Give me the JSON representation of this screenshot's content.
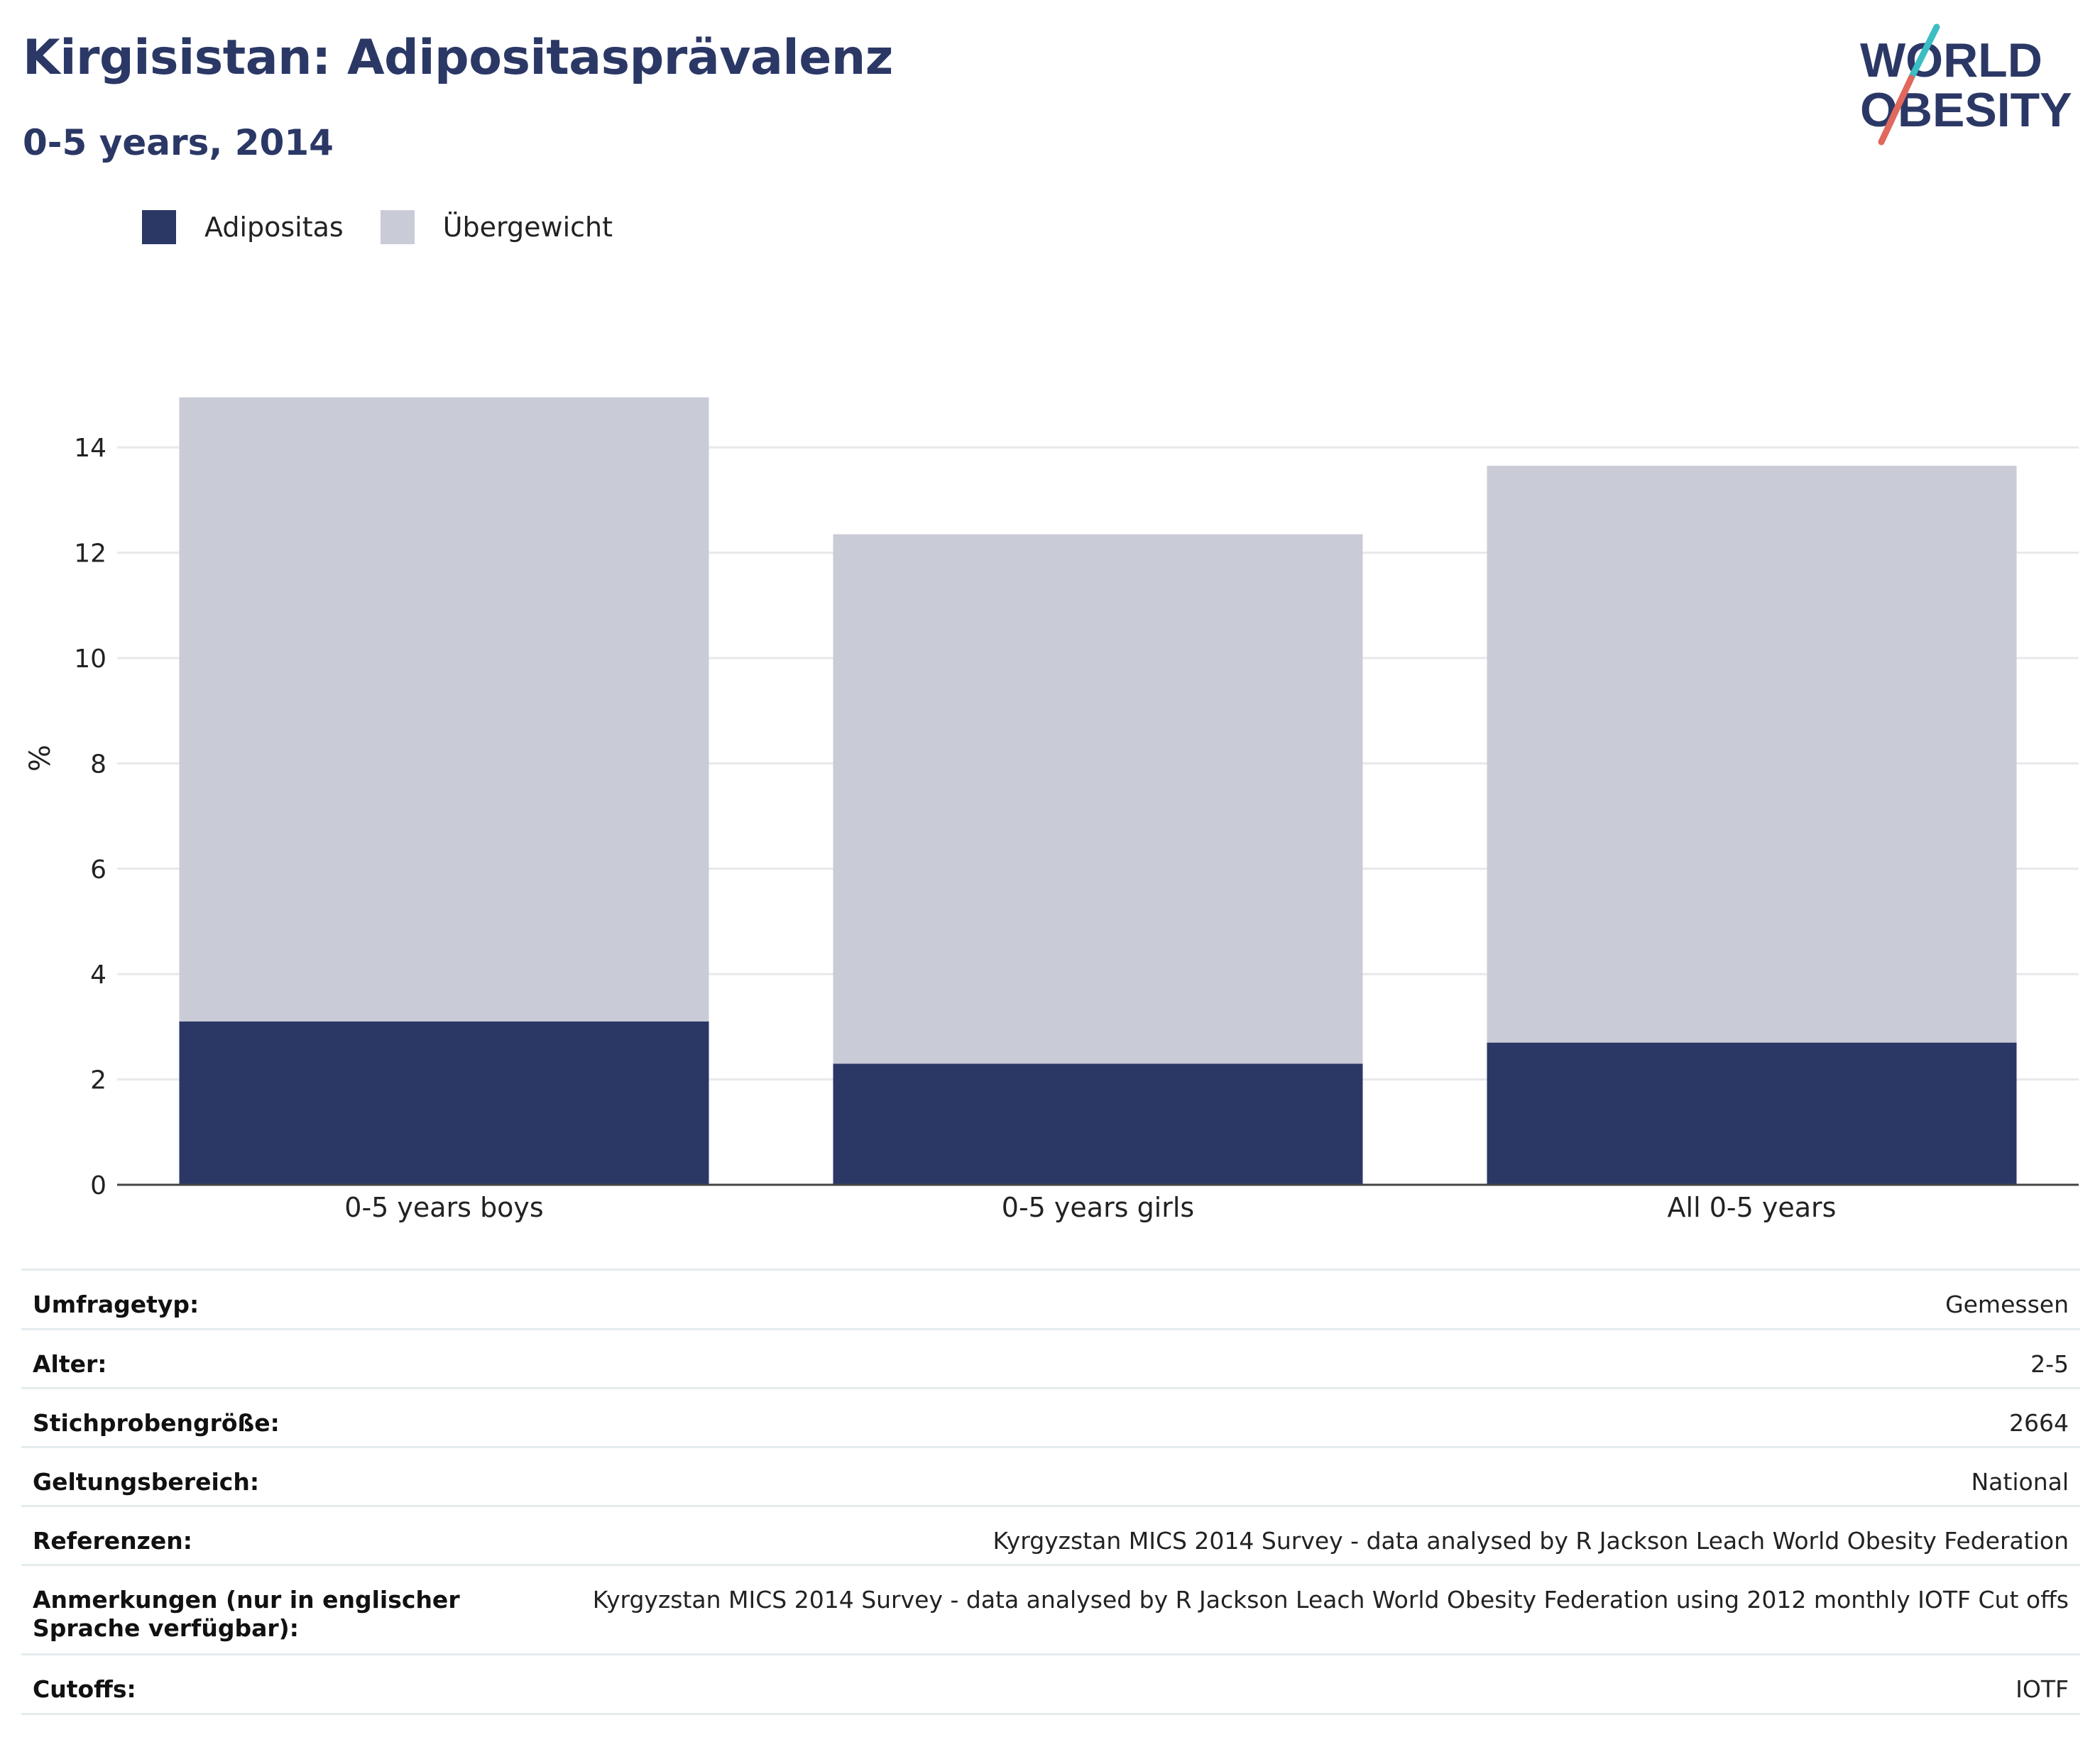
{
  "header": {
    "title": "Kirgisistan: Adipositasprävalenz",
    "subtitle": "0-5 years, 2014"
  },
  "logo": {
    "line1": "WORLD",
    "line2": "OBESITY",
    "colors": {
      "navy": "#2b3866",
      "teal": "#3bbdc3",
      "coral": "#e0685c"
    }
  },
  "legend": [
    {
      "label": "Adipositas",
      "color": "#2b3866"
    },
    {
      "label": "Übergewicht",
      "color": "#c9cbd7"
    }
  ],
  "chart_data": {
    "type": "bar",
    "stacked": true,
    "categories": [
      "0-5 years boys",
      "0-5 years girls",
      "All 0-5 years"
    ],
    "series": [
      {
        "name": "Adipositas",
        "values": [
          3.1,
          2.3,
          2.7
        ],
        "color": "#2b3866"
      },
      {
        "name": "Übergewicht",
        "values": [
          11.85,
          10.05,
          10.95
        ],
        "color": "#c9cbd7"
      }
    ],
    "ylabel": "%",
    "ylim": [
      0,
      15
    ],
    "yticks": [
      0,
      2,
      4,
      6,
      8,
      10,
      12,
      14
    ],
    "grid": true,
    "legend_position": "top-left"
  },
  "info_table": [
    {
      "label": "Umfragetyp:",
      "value": "Gemessen"
    },
    {
      "label": "Alter:",
      "value": "2-5"
    },
    {
      "label": "Stichprobengröße:",
      "value": "2664"
    },
    {
      "label": "Geltungsbereich:",
      "value": "National"
    },
    {
      "label": "Referenzen:",
      "value": "Kyrgyzstan MICS 2014 Survey - data analysed by R Jackson Leach World Obesity Federation"
    },
    {
      "label": "Anmerkungen (nur in englischer Sprache verfügbar):",
      "value": "Kyrgyzstan MICS 2014 Survey - data analysed by R Jackson Leach World Obesity Federation using 2012 monthly IOTF Cut offs"
    },
    {
      "label": "Cutoffs:",
      "value": "IOTF"
    }
  ]
}
